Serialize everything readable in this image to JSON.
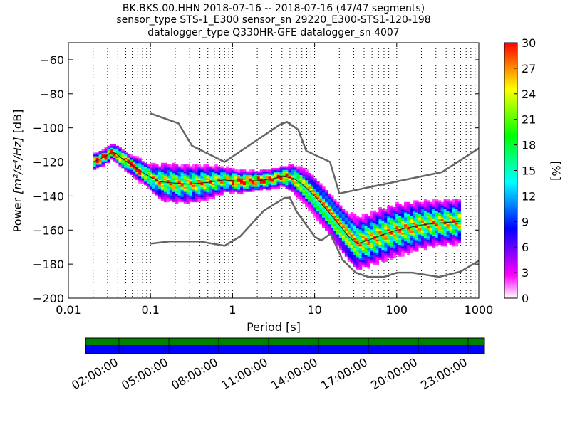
{
  "chart_data": {
    "type": "heatmap",
    "title_lines": [
      "BK.BKS.00.HHN   2018-07-16 -- 2018-07-16  (47/47 segments)",
      "sensor_type STS-1_E300 sensor_sn 29220_E300-STS1-120-198",
      "datalogger_type Q330HR-GFE datalogger_sn 4007"
    ],
    "xlabel": "Period [s]",
    "ylabel_main": "Power ",
    "ylabel_unit": "[m²/s⁴/Hz]",
    "ylabel_suffix": " [dB]",
    "x_scale": "log",
    "xlim": [
      0.01,
      1000
    ],
    "ylim": [
      -200,
      -50
    ],
    "x_ticks": [
      {
        "value": 0.01,
        "label": "0.01"
      },
      {
        "value": 0.1,
        "label": "0.1"
      },
      {
        "value": 1,
        "label": "1"
      },
      {
        "value": 10,
        "label": "10"
      },
      {
        "value": 100,
        "label": "100"
      },
      {
        "value": 1000,
        "label": "1000"
      }
    ],
    "y_ticks": [
      {
        "value": -60,
        "label": "−60"
      },
      {
        "value": -80,
        "label": "−80"
      },
      {
        "value": -100,
        "label": "−100"
      },
      {
        "value": -120,
        "label": "−120"
      },
      {
        "value": -140,
        "label": "−140"
      },
      {
        "value": -160,
        "label": "−160"
      },
      {
        "value": -180,
        "label": "−180"
      },
      {
        "value": -200,
        "label": "−200"
      }
    ],
    "grid": "dotted-vertical",
    "colorbar": {
      "label": "[%]",
      "range": [
        0,
        30
      ],
      "ticks": [
        {
          "value": 0,
          "label": "0"
        },
        {
          "value": 3,
          "label": "3"
        },
        {
          "value": 6,
          "label": "6"
        },
        {
          "value": 9,
          "label": "9"
        },
        {
          "value": 12,
          "label": "12"
        },
        {
          "value": 15,
          "label": "15"
        },
        {
          "value": 18,
          "label": "18"
        },
        {
          "value": 21,
          "label": "21"
        },
        {
          "value": 24,
          "label": "24"
        },
        {
          "value": 27,
          "label": "27"
        },
        {
          "value": 30,
          "label": "30"
        }
      ],
      "colors": [
        "#ffffff",
        "#ff00ff",
        "#8000ff",
        "#0000ff",
        "#0080ff",
        "#00ffff",
        "#00ff80",
        "#00ff00",
        "#80ff00",
        "#ffff00",
        "#ff8000",
        "#ff0000"
      ]
    },
    "nhnm": [
      [
        0.1,
        -91.5
      ],
      [
        0.22,
        -97.4
      ],
      [
        0.32,
        -110.5
      ],
      [
        0.8,
        -120
      ],
      [
        3.8,
        -98
      ],
      [
        4.6,
        -96.5
      ],
      [
        6.3,
        -101
      ],
      [
        7.9,
        -113.5
      ],
      [
        15.4,
        -120
      ],
      [
        20,
        -138.5
      ],
      [
        354.8,
        -126
      ],
      [
        1000,
        -112
      ]
    ],
    "nlnm": [
      [
        0.1,
        -168
      ],
      [
        0.17,
        -166.7
      ],
      [
        0.4,
        -166.7
      ],
      [
        0.8,
        -169.2
      ],
      [
        1.24,
        -163.7
      ],
      [
        2.4,
        -148.6
      ],
      [
        4.3,
        -141.1
      ],
      [
        5,
        -141
      ],
      [
        6,
        -149
      ],
      [
        10,
        -163.8
      ],
      [
        12,
        -166.2
      ],
      [
        15.6,
        -162.1
      ],
      [
        21.9,
        -177.5
      ],
      [
        31.6,
        -185
      ],
      [
        45,
        -187.5
      ],
      [
        70,
        -187.5
      ],
      [
        101,
        -185
      ],
      [
        154,
        -185
      ],
      [
        328,
        -187.5
      ],
      [
        600,
        -184.4
      ],
      [
        1000,
        -178
      ]
    ],
    "psd_median": [
      [
        0.02,
        -120
      ],
      [
        0.025,
        -118
      ],
      [
        0.03,
        -116
      ],
      [
        0.033,
        -114
      ],
      [
        0.038,
        -115
      ],
      [
        0.045,
        -118
      ],
      [
        0.06,
        -122
      ],
      [
        0.08,
        -126
      ],
      [
        0.1,
        -129
      ],
      [
        0.13,
        -131.5
      ],
      [
        0.2,
        -132.5
      ],
      [
        0.3,
        -133
      ],
      [
        0.5,
        -132
      ],
      [
        0.8,
        -130.5
      ],
      [
        1.2,
        -131.5
      ],
      [
        2,
        -131
      ],
      [
        3,
        -130
      ],
      [
        4,
        -128.5
      ],
      [
        5.5,
        -129.5
      ],
      [
        7,
        -133
      ],
      [
        10,
        -140
      ],
      [
        14,
        -148
      ],
      [
        20,
        -157
      ],
      [
        26,
        -164
      ],
      [
        33,
        -168
      ],
      [
        45,
        -166
      ],
      [
        65,
        -163
      ],
      [
        100,
        -160
      ],
      [
        200,
        -157
      ],
      [
        300,
        -156
      ],
      [
        600,
        -155
      ]
    ],
    "psd_spread": [
      [
        0.02,
        2
      ],
      [
        0.03,
        2
      ],
      [
        0.06,
        2.5
      ],
      [
        0.1,
        3.5
      ],
      [
        0.15,
        5
      ],
      [
        0.3,
        5
      ],
      [
        0.5,
        4.5
      ],
      [
        1,
        3
      ],
      [
        2,
        2.5
      ],
      [
        4,
        2.5
      ],
      [
        6,
        4
      ],
      [
        10,
        5
      ],
      [
        20,
        6
      ],
      [
        30,
        7
      ],
      [
        60,
        7
      ],
      [
        100,
        7
      ],
      [
        300,
        6
      ],
      [
        600,
        6
      ]
    ],
    "time_axis": {
      "labels": [
        "02:00:00",
        "05:00:00",
        "08:00:00",
        "11:00:00",
        "14:00:00",
        "17:00:00",
        "20:00:00",
        "23:00:00"
      ],
      "coverage_colors": [
        "#008000",
        "#0000ff"
      ]
    }
  }
}
